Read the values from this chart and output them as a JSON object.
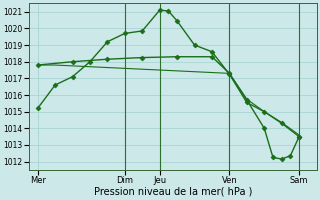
{
  "xlabel": "Pression niveau de la mer( hPa )",
  "ylim": [
    1011.5,
    1021.5
  ],
  "yticks": [
    1012,
    1013,
    1014,
    1015,
    1016,
    1017,
    1018,
    1019,
    1020,
    1021
  ],
  "bg_color": "#cce8e8",
  "grid_color": "#aad4d4",
  "line_color": "#1a6e1a",
  "vline_color": "#2d6e2d",
  "day_labels": [
    "Mer",
    "Dim",
    "Jeu",
    "Ven",
    "Sam"
  ],
  "day_positions": [
    0,
    5,
    7,
    11,
    15
  ],
  "vlines_x": [
    5,
    7,
    11,
    15
  ],
  "xlim": [
    -0.5,
    16
  ],
  "series1_x": [
    0,
    1,
    2,
    3,
    4,
    5,
    6,
    7,
    7.5,
    8,
    9,
    10,
    11,
    12,
    13,
    14,
    15
  ],
  "series1_y": [
    1015.2,
    1016.6,
    1017.1,
    1018.0,
    1019.2,
    1019.7,
    1019.85,
    1021.1,
    1021.05,
    1020.45,
    1019.0,
    1018.6,
    1017.25,
    1015.55,
    1015.0,
    1014.3,
    1013.5
  ],
  "series2_x": [
    0,
    1,
    2,
    3,
    4,
    5,
    6,
    7,
    8,
    9,
    10,
    11,
    12,
    13,
    14,
    15
  ],
  "series2_y": [
    1017.8,
    1017.8,
    1017.75,
    1017.7,
    1017.65,
    1017.6,
    1017.55,
    1017.5,
    1017.45,
    1017.4,
    1017.35,
    1017.3,
    1015.75,
    1015.0,
    1014.35,
    1013.6
  ],
  "series3_x": [
    0,
    2,
    4,
    6,
    8,
    10,
    11,
    12,
    13,
    13.5,
    14,
    14.5,
    15
  ],
  "series3_y": [
    1017.8,
    1018.0,
    1018.15,
    1018.25,
    1018.3,
    1018.3,
    1017.3,
    1015.7,
    1014.0,
    1012.25,
    1012.15,
    1012.35,
    1013.5
  ],
  "marker": "D",
  "markersize": 2.5,
  "linewidth": 1.0
}
